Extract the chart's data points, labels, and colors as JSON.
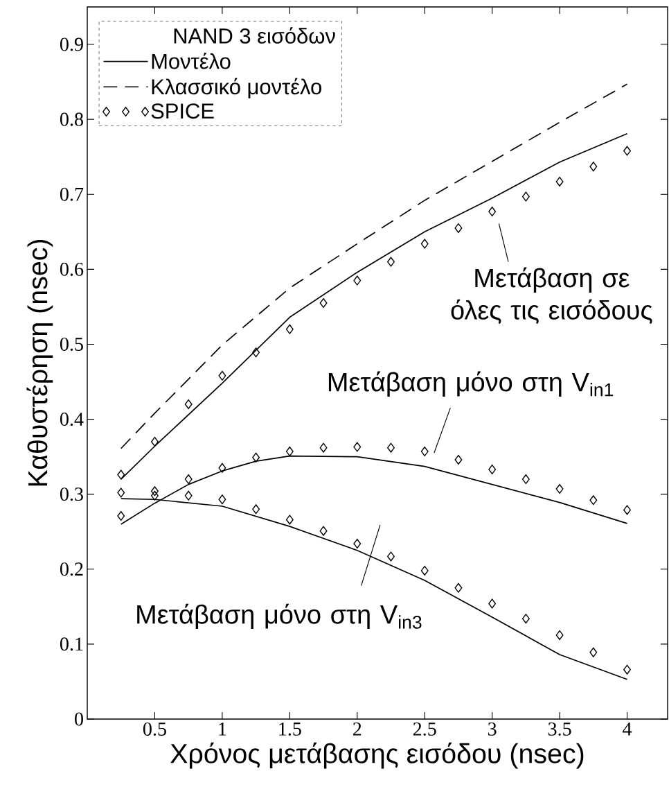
{
  "chart_data": {
    "type": "line",
    "xlabel": "Χρόνος μετάβασης εισόδου (nsec)",
    "ylabel": "Καθυστέρηση (nsec)",
    "legend_title": "NAND 3 εισόδων",
    "legend": "top left",
    "xlim": [
      0,
      4.3
    ],
    "ylim": [
      0,
      0.95
    ],
    "xticks": [
      0.5,
      1,
      1.5,
      2,
      2.5,
      3,
      3.5,
      4
    ],
    "yticks": [
      0,
      0.1,
      0.2,
      0.3,
      0.4,
      0.5,
      0.6,
      0.7,
      0.8,
      0.9
    ],
    "series": [
      {
        "name": "Μοντέλο",
        "color": "#000000",
        "line_style": "solid",
        "x": [
          0.25,
          0.5,
          1,
          1.5,
          2,
          2.5,
          3,
          3.5,
          4
        ],
        "values": [
          0.32,
          0.364,
          0.448,
          0.536,
          0.596,
          0.65,
          0.695,
          0.743,
          0.781
        ]
      },
      {
        "name": "Κλασσικό μοντέλο",
        "color": "#000000",
        "line_style": "dashed",
        "x": [
          0.25,
          0.5,
          1,
          1.5,
          2,
          2.5,
          3,
          3.5,
          4
        ],
        "values": [
          0.361,
          0.408,
          0.499,
          0.575,
          0.634,
          0.692,
          0.744,
          0.796,
          0.847
        ]
      },
      {
        "type": "scatter",
        "name": "SPICE",
        "color": "#000000",
        "marker": "diamond",
        "x": [
          0.25,
          0.5,
          0.75,
          1,
          1.25,
          1.5,
          1.75,
          2,
          2.25,
          2.5,
          2.75,
          3,
          3.25,
          3.5,
          3.75,
          4
        ],
        "values": [
          0.326,
          0.37,
          0.42,
          0.458,
          0.489,
          0.52,
          0.555,
          0.585,
          0.61,
          0.634,
          0.655,
          0.677,
          0.697,
          0.717,
          0.737,
          0.758
        ]
      },
      {
        "color": "#000000",
        "line_style": "solid",
        "x": [
          0.25,
          0.5,
          0.75,
          1,
          1.25,
          1.5,
          2,
          2.5,
          3,
          3.5,
          4
        ],
        "values": [
          0.26,
          0.288,
          0.313,
          0.331,
          0.344,
          0.351,
          0.35,
          0.337,
          0.313,
          0.289,
          0.261
        ]
      },
      {
        "type": "scatter",
        "color": "#000000",
        "marker": "diamond",
        "x": [
          0.25,
          0.5,
          0.75,
          1,
          1.25,
          1.5,
          1.75,
          2,
          2.25,
          2.5,
          2.75,
          3,
          3.25,
          3.5,
          3.75,
          4
        ],
        "values": [
          0.302,
          0.304,
          0.32,
          0.335,
          0.349,
          0.357,
          0.362,
          0.363,
          0.362,
          0.357,
          0.346,
          0.333,
          0.32,
          0.307,
          0.292,
          0.279
        ]
      },
      {
        "color": "#000000",
        "line_style": "solid",
        "x": [
          0.25,
          0.5,
          1,
          1.5,
          2,
          2.5,
          3,
          3.5,
          4
        ],
        "values": [
          0.294,
          0.293,
          0.284,
          0.257,
          0.225,
          0.185,
          0.136,
          0.086,
          0.053
        ]
      },
      {
        "type": "scatter",
        "color": "#000000",
        "marker": "diamond",
        "x": [
          0.25,
          0.5,
          0.75,
          1,
          1.25,
          1.5,
          1.75,
          2,
          2.25,
          2.5,
          2.75,
          3,
          3.25,
          3.5,
          3.75,
          4
        ],
        "values": [
          0.271,
          0.298,
          0.298,
          0.293,
          0.28,
          0.266,
          0.251,
          0.234,
          0.217,
          0.198,
          0.175,
          0.154,
          0.134,
          0.112,
          0.089,
          0.066
        ]
      }
    ],
    "annotations": [
      "Μετάβαση σε όλες τις εισόδους",
      "Μετάβαση μόνο στη V$_{in1}$",
      "Μετάβαση μόνο στη V$_{in3}$"
    ]
  }
}
